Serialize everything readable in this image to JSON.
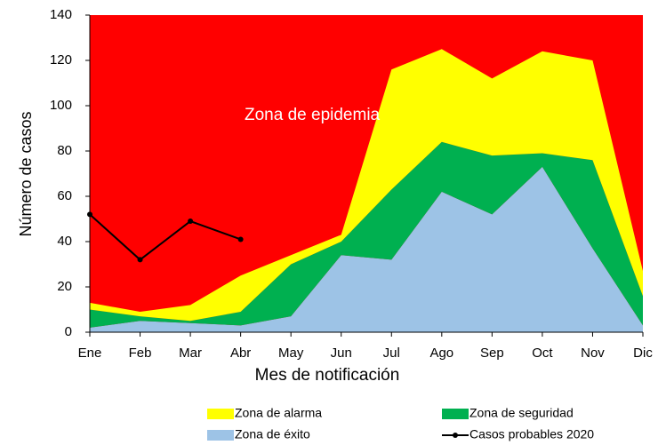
{
  "chart_data": {
    "type": "area",
    "annotation": "Zona de epidemia",
    "annotation_color": "#ffffff",
    "plot_background": "#ff0000",
    "x_label": "Mes de notificación",
    "y_label": "Número de casos",
    "categories": [
      "Ene",
      "Feb",
      "Mar",
      "Abr",
      "May",
      "Jun",
      "Jul",
      "Ago",
      "Sep",
      "Oct",
      "Nov",
      "Dic"
    ],
    "ylim": [
      0,
      140
    ],
    "yticks": [
      0,
      20,
      40,
      60,
      80,
      100,
      120,
      140
    ],
    "series": [
      {
        "name": "Zona de éxito",
        "color": "#9dc3e6",
        "values": [
          2,
          5,
          4,
          3,
          7,
          34,
          32,
          62,
          52,
          73,
          37,
          3
        ]
      },
      {
        "name": "Zona de seguridad",
        "color": "#00b050",
        "values": [
          10,
          7,
          5,
          9,
          30,
          40,
          63,
          84,
          78,
          79,
          76,
          16
        ]
      },
      {
        "name": "Zona de alarma",
        "color": "#ffff00",
        "values": [
          13,
          9,
          12,
          25,
          34,
          43,
          116,
          125,
          112,
          124,
          120,
          27
        ]
      },
      {
        "name": "Casos probables 2020",
        "color": "#000000",
        "type": "line",
        "values": [
          52,
          32,
          49,
          41,
          null,
          null,
          null,
          null,
          null,
          null,
          null,
          null
        ]
      }
    ]
  }
}
